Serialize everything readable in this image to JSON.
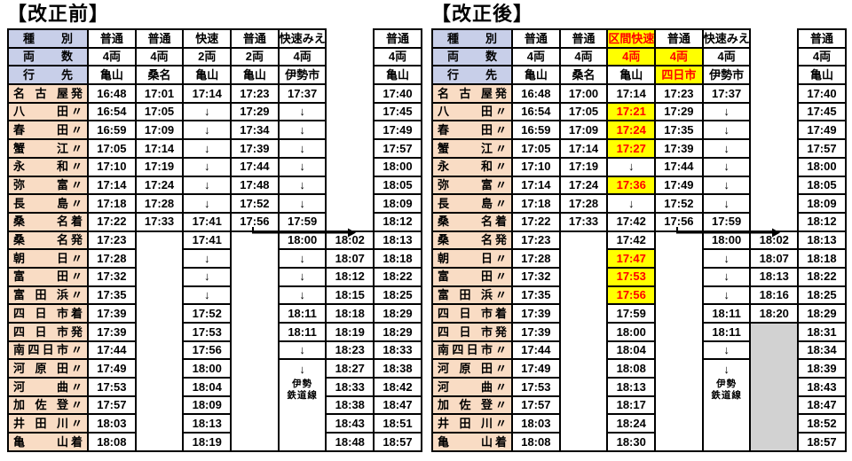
{
  "titles": {
    "before": "【改正前】",
    "after": "【改正後】"
  },
  "colors": {
    "header_bg": "#c8cfe9",
    "station_bg": "#f9dcc4",
    "highlight_bg": "#ffff00",
    "highlight_text": "#ff0000",
    "suspended_bg": "#d2d2d2",
    "border": "#000000"
  },
  "legend": {
    "pass_mark": "↓",
    "ise_branch_lines": [
      "↓",
      "伊勢",
      "鉄道線"
    ]
  },
  "tables": {
    "before": {
      "rows": [
        {
          "h": true,
          "n": "種別",
          "s": "",
          "cells": [
            "普通",
            "普通",
            "快速",
            "普通",
            "快速みえ",
            null,
            "普通"
          ]
        },
        {
          "h": true,
          "n": "両数",
          "s": "",
          "cells": [
            "4両",
            "4両",
            "2両",
            "2両",
            "4両",
            null,
            "4両"
          ]
        },
        {
          "h": true,
          "n": "行先",
          "s": "",
          "cells": [
            "亀山",
            "桑名",
            "亀山",
            "亀山",
            "伊勢市",
            null,
            "亀山"
          ]
        },
        {
          "n": "名古屋",
          "s": "発",
          "cells": [
            "16:48",
            "17:01",
            "17:14",
            "17:23",
            "17:37",
            null,
            "17:40"
          ]
        },
        {
          "n": "八田",
          "s": "〃",
          "cells": [
            "16:54",
            "17:05",
            "↓",
            "17:29",
            "↓",
            null,
            "17:45"
          ]
        },
        {
          "n": "春田",
          "s": "〃",
          "cells": [
            "16:59",
            "17:09",
            "↓",
            "17:34",
            "↓",
            null,
            "17:49"
          ]
        },
        {
          "n": "蟹江",
          "s": "〃",
          "cells": [
            "17:05",
            "17:14",
            "↓",
            "17:39",
            "↓",
            null,
            "17:57"
          ]
        },
        {
          "n": "永和",
          "s": "〃",
          "cells": [
            "17:10",
            "17:19",
            "↓",
            "17:44",
            "↓",
            null,
            "18:00"
          ]
        },
        {
          "n": "弥富",
          "s": "〃",
          "cells": [
            "17:14",
            "17:24",
            "↓",
            "17:48",
            "↓",
            null,
            "18:05"
          ]
        },
        {
          "n": "長島",
          "s": "〃",
          "cells": [
            "17:18",
            "17:28",
            "↓",
            "17:52",
            "↓",
            null,
            "18:09"
          ]
        },
        {
          "n": "桑名",
          "s": "着",
          "cells": [
            "17:22",
            "17:33",
            "17:41",
            "17:56",
            "17:59",
            null,
            "18:12"
          ]
        },
        {
          "n": "桑名",
          "s": "発",
          "cells": [
            "17:23",
            {
              "span": 13
            },
            "17:41",
            {
              "span": 13
            },
            "18:00",
            "18:02",
            "18:13"
          ]
        },
        {
          "n": "朝日",
          "s": "〃",
          "cells": [
            "17:28",
            "↓",
            "↓",
            "18:07",
            "18:18"
          ]
        },
        {
          "n": "富田",
          "s": "〃",
          "cells": [
            "17:32",
            "↓",
            "↓",
            "18:12",
            "18:22"
          ]
        },
        {
          "n": "富田浜",
          "s": "〃",
          "cells": [
            "17:35",
            "↓",
            "↓",
            "18:15",
            "18:25"
          ]
        },
        {
          "n": "四日市",
          "s": "着",
          "cells": [
            "17:39",
            "17:52",
            "18:11",
            "18:18",
            "18:29"
          ]
        },
        {
          "n": "四日市",
          "s": "発",
          "cells": [
            "17:39",
            "17:53",
            "18:11",
            "18:19",
            "18:29"
          ]
        },
        {
          "n": "南四日市",
          "s": "〃",
          "cells": [
            "17:44",
            "17:56",
            "↓",
            "18:23",
            "18:33"
          ]
        },
        {
          "n": "河原田",
          "s": "〃",
          "cells": [
            "17:49",
            "18:00",
            {
              "span": 5,
              "kind": "ise",
              "lines": [
                "↓",
                "伊勢",
                "鉄道線"
              ]
            },
            "18:27",
            "18:38"
          ]
        },
        {
          "n": "河曲",
          "s": "〃",
          "cells": [
            "17:53",
            "18:04",
            "18:33",
            "18:42"
          ]
        },
        {
          "n": "加佐登",
          "s": "〃",
          "cells": [
            "17:57",
            "18:09",
            "18:38",
            "18:47"
          ]
        },
        {
          "n": "井田川",
          "s": "〃",
          "cells": [
            "18:03",
            "18:13",
            "18:43",
            "18:51"
          ]
        },
        {
          "n": "亀山",
          "s": "着",
          "cells": [
            "18:08",
            "18:19",
            "18:48",
            "18:57"
          ]
        }
      ]
    },
    "after": {
      "rows": [
        {
          "h": true,
          "n": "種別",
          "s": "",
          "cells": [
            "普通",
            "普通",
            {
              "t": "区間快速",
              "hl": true
            },
            "普通",
            "快速みえ",
            null,
            "普通"
          ]
        },
        {
          "h": true,
          "n": "両数",
          "s": "",
          "cells": [
            "4両",
            "4両",
            {
              "t": "4両",
              "hl": true
            },
            {
              "t": "4両",
              "hl": true
            },
            "4両",
            null,
            "4両"
          ]
        },
        {
          "h": true,
          "n": "行先",
          "s": "",
          "cells": [
            "亀山",
            "桑名",
            "亀山",
            {
              "t": "四日市",
              "hl": true
            },
            "伊勢市",
            null,
            "亀山"
          ]
        },
        {
          "n": "名古屋",
          "s": "発",
          "cells": [
            "16:48",
            "17:00",
            "17:14",
            "17:23",
            "17:37",
            null,
            "17:40"
          ]
        },
        {
          "n": "八田",
          "s": "〃",
          "cells": [
            "16:54",
            "17:05",
            {
              "t": "17:21",
              "hl": true
            },
            "17:29",
            "↓",
            null,
            "17:45"
          ]
        },
        {
          "n": "春田",
          "s": "〃",
          "cells": [
            "16:59",
            "17:09",
            {
              "t": "17:24",
              "hl": true
            },
            "17:35",
            "↓",
            null,
            "17:49"
          ]
        },
        {
          "n": "蟹江",
          "s": "〃",
          "cells": [
            "17:05",
            "17:14",
            {
              "t": "17:27",
              "hl": true
            },
            "17:39",
            "↓",
            null,
            "17:57"
          ]
        },
        {
          "n": "永和",
          "s": "〃",
          "cells": [
            "17:10",
            "17:19",
            "↓",
            "17:44",
            "↓",
            null,
            "18:00"
          ]
        },
        {
          "n": "弥富",
          "s": "〃",
          "cells": [
            "17:14",
            "17:24",
            {
              "t": "17:36",
              "hl": true
            },
            "17:49",
            "↓",
            null,
            "18:05"
          ]
        },
        {
          "n": "長島",
          "s": "〃",
          "cells": [
            "17:18",
            "17:28",
            "↓",
            "17:52",
            "↓",
            null,
            "18:09"
          ]
        },
        {
          "n": "桑名",
          "s": "着",
          "cells": [
            "17:22",
            "17:33",
            "17:42",
            "17:56",
            "17:59",
            null,
            "18:12"
          ]
        },
        {
          "n": "桑名",
          "s": "発",
          "cells": [
            "17:23",
            {
              "span": 13
            },
            "17:42",
            {
              "span": 13
            },
            "18:00",
            "18:02",
            "18:13"
          ]
        },
        {
          "n": "朝日",
          "s": "〃",
          "cells": [
            "17:28",
            {
              "t": "17:47",
              "hl": true
            },
            "↓",
            "18:07",
            "18:18"
          ]
        },
        {
          "n": "富田",
          "s": "〃",
          "cells": [
            "17:32",
            {
              "t": "17:53",
              "hl": true
            },
            "↓",
            "18:13",
            "18:22"
          ]
        },
        {
          "n": "富田浜",
          "s": "〃",
          "cells": [
            "17:35",
            {
              "t": "17:56",
              "hl": true
            },
            "↓",
            "18:16",
            "18:25"
          ]
        },
        {
          "n": "四日市",
          "s": "着",
          "cells": [
            "17:39",
            "17:59",
            "18:11",
            "18:20",
            "18:29"
          ]
        },
        {
          "n": "四日市",
          "s": "発",
          "cells": [
            "17:39",
            "18:00",
            "18:11",
            {
              "span": 7,
              "kind": "gray"
            },
            "18:31"
          ]
        },
        {
          "n": "南四日市",
          "s": "〃",
          "cells": [
            "17:44",
            "18:04",
            "↓",
            "18:34"
          ]
        },
        {
          "n": "河原田",
          "s": "〃",
          "cells": [
            "17:49",
            "18:08",
            {
              "span": 5,
              "kind": "ise",
              "lines": [
                "↓",
                "伊勢",
                "鉄道線"
              ]
            },
            "18:39"
          ]
        },
        {
          "n": "河曲",
          "s": "〃",
          "cells": [
            "17:53",
            "18:13",
            "18:43"
          ]
        },
        {
          "n": "加佐登",
          "s": "〃",
          "cells": [
            "17:57",
            "18:17",
            "18:47"
          ]
        },
        {
          "n": "井田川",
          "s": "〃",
          "cells": [
            "18:03",
            "18:24",
            "18:52"
          ]
        },
        {
          "n": "亀山",
          "s": "着",
          "cells": [
            "18:08",
            "18:30",
            "18:57"
          ]
        }
      ]
    }
  }
}
